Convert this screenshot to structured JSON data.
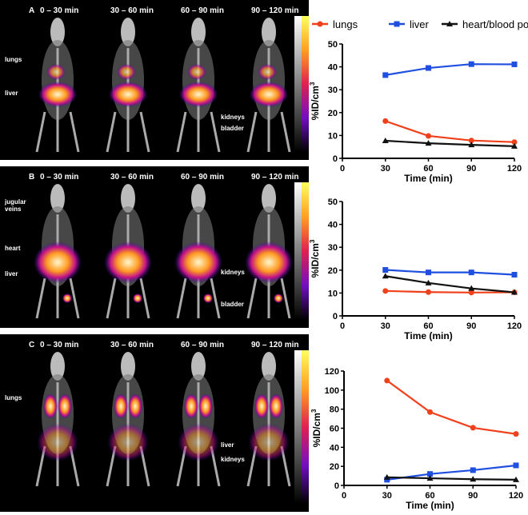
{
  "panels": [
    {
      "letter": "A",
      "times": [
        "0 – 30 min",
        "30 – 60 min",
        "60 – 90 min",
        "90  – 120 min"
      ],
      "labels_first": [
        "lungs",
        "liver"
      ],
      "labels_last": [
        "kidneys",
        "bladder"
      ]
    },
    {
      "letter": "B",
      "times": [
        "0 – 30 min",
        "30 – 60 min",
        "60 – 90 min",
        "90  – 120 min"
      ],
      "labels_first": [
        "jugular veins",
        "heart",
        "liver"
      ],
      "labels_last": [
        "kidneys",
        "bladder"
      ]
    },
    {
      "letter": "C",
      "times": [
        "0 – 30 min",
        "30 – 60 min",
        "60 – 90 min",
        "90  – 120 min"
      ],
      "labels_first": [
        "lungs"
      ],
      "labels_last": [
        "liver",
        "kidneys"
      ]
    }
  ],
  "legend": [
    {
      "name": "lungs",
      "color": "#f0401c",
      "marker": "circle"
    },
    {
      "name": "liver",
      "color": "#1f4fe0",
      "marker": "square"
    },
    {
      "name": "heart/blood pool",
      "color": "#111111",
      "marker": "triangle"
    }
  ],
  "chart_data": [
    {
      "type": "line",
      "ylabel": "%ID/cm3",
      "xlabel": "Time (min)",
      "xlim": [
        0,
        120
      ],
      "xticks": [
        0,
        30,
        60,
        90,
        120
      ],
      "ylim": [
        0,
        50
      ],
      "yticks": [
        0,
        10,
        20,
        30,
        40,
        50
      ],
      "x": [
        30,
        60,
        90,
        120
      ],
      "series": [
        {
          "name": "lungs",
          "values": [
            16.3,
            9.8,
            7.8,
            7.1
          ]
        },
        {
          "name": "liver",
          "values": [
            36.4,
            39.5,
            41.2,
            41.1
          ]
        },
        {
          "name": "heart/blood pool",
          "values": [
            7.7,
            6.6,
            5.9,
            5.3
          ]
        }
      ]
    },
    {
      "type": "line",
      "ylabel": "%ID/cm3",
      "xlabel": "Time (min)",
      "xlim": [
        0,
        120
      ],
      "xticks": [
        0,
        30,
        60,
        90,
        120
      ],
      "ylim": [
        0,
        50
      ],
      "yticks": [
        0,
        10,
        20,
        30,
        40,
        50
      ],
      "x": [
        30,
        60,
        90,
        120
      ],
      "series": [
        {
          "name": "lungs",
          "values": [
            10.9,
            10.4,
            10.2,
            10.3
          ]
        },
        {
          "name": "liver",
          "values": [
            20.1,
            19.0,
            19.0,
            18.0
          ]
        },
        {
          "name": "heart/blood pool",
          "values": [
            17.4,
            14.4,
            12.0,
            10.3
          ]
        }
      ]
    },
    {
      "type": "line",
      "ylabel": "%ID/cm3",
      "xlabel": "Time (min)",
      "xlim": [
        0,
        120
      ],
      "xticks": [
        0,
        30,
        60,
        90,
        120
      ],
      "ylim": [
        0,
        120
      ],
      "yticks": [
        0,
        20,
        40,
        60,
        80,
        100,
        120
      ],
      "x": [
        30,
        60,
        90,
        120
      ],
      "series": [
        {
          "name": "lungs",
          "values": [
            110,
            77,
            60.5,
            54
          ]
        },
        {
          "name": "liver",
          "values": [
            6,
            12,
            16,
            21
          ]
        },
        {
          "name": "heart/blood pool",
          "values": [
            8.5,
            7.5,
            6.5,
            6
          ]
        }
      ]
    }
  ]
}
